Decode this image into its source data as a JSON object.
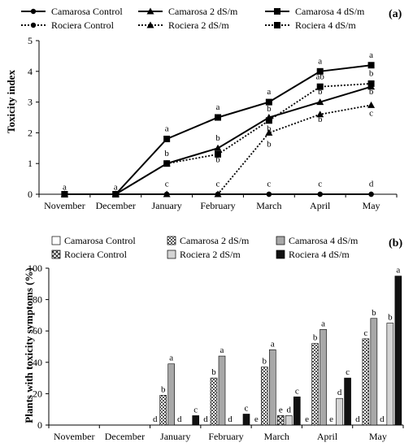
{
  "chart_data": [
    {
      "type": "line",
      "panel_label": "(a)",
      "ylabel": "Toxicity index",
      "categories": [
        "November",
        "December",
        "January",
        "February",
        "March",
        "April",
        "May"
      ],
      "ylim": [
        0,
        5
      ],
      "yticks": [
        "0",
        "1",
        "2",
        "3",
        "4",
        "5"
      ],
      "grid": false,
      "legend_position": "top",
      "series": [
        {
          "name": "Camarosa Control",
          "values": [
            0,
            0,
            0,
            0,
            0,
            0,
            0
          ],
          "marker": "circle",
          "dash": "solid",
          "labels": [
            "",
            "",
            "",
            "",
            "",
            "",
            ""
          ]
        },
        {
          "name": "Camarosa 2 dS/m",
          "values": [
            0,
            0,
            1,
            1.5,
            2.5,
            3,
            3.5
          ],
          "marker": "triangle",
          "dash": "solid",
          "labels": [
            "",
            "",
            "",
            "",
            "",
            "",
            ""
          ]
        },
        {
          "name": "Camarosa 4 dS/m",
          "values": [
            0,
            0,
            1.8,
            2.5,
            3,
            4,
            4.2
          ],
          "marker": "square",
          "dash": "solid",
          "labels": [
            "",
            "",
            "",
            "",
            "",
            "",
            ""
          ]
        },
        {
          "name": "Rociera Control",
          "values": [
            0,
            0,
            0,
            0,
            0,
            0,
            0
          ],
          "marker": "circle",
          "dash": "dotted",
          "labels": [
            "",
            "",
            "",
            "",
            "",
            "",
            ""
          ]
        },
        {
          "name": "Rociera 2 dS/m",
          "values": [
            0,
            0,
            0,
            0,
            2,
            2.6,
            2.9
          ],
          "marker": "triangle",
          "dash": "dotted",
          "labels": [
            "",
            "",
            "",
            "",
            "",
            "",
            ""
          ]
        },
        {
          "name": "Rociera 4 dS/m",
          "values": [
            0,
            0,
            1,
            1.3,
            2.4,
            3.5,
            3.6
          ],
          "marker": "square",
          "dash": "dotted",
          "labels": [
            "",
            "",
            "",
            "",
            "",
            "",
            ""
          ]
        }
      ],
      "annotations": [
        {
          "cat": 0,
          "y": 0.15,
          "text": "a"
        },
        {
          "cat": 1,
          "y": 0.15,
          "text": "a"
        },
        {
          "cat": 2,
          "y": 2.05,
          "text": "a"
        },
        {
          "cat": 2,
          "y": 1.25,
          "text": "b"
        },
        {
          "cat": 2,
          "y": 0.25,
          "text": "c"
        },
        {
          "cat": 3,
          "y": 2.75,
          "text": "a"
        },
        {
          "cat": 3,
          "y": 1.75,
          "text": "b"
        },
        {
          "cat": 3,
          "y": 1.05,
          "text": "b"
        },
        {
          "cat": 3,
          "y": 0.25,
          "text": "c"
        },
        {
          "cat": 4,
          "y": 3.25,
          "text": "a"
        },
        {
          "cat": 4,
          "y": 2.7,
          "text": "b"
        },
        {
          "cat": 4,
          "y": 2.05,
          "text": "b"
        },
        {
          "cat": 4,
          "y": 1.55,
          "text": "b"
        },
        {
          "cat": 4,
          "y": 0.25,
          "text": "c"
        },
        {
          "cat": 5,
          "y": 4.25,
          "text": "a"
        },
        {
          "cat": 5,
          "y": 3.75,
          "text": "ab"
        },
        {
          "cat": 5,
          "y": 3.25,
          "text": "b"
        },
        {
          "cat": 5,
          "y": 2.35,
          "text": "b"
        },
        {
          "cat": 5,
          "y": 0.25,
          "text": "c"
        },
        {
          "cat": 6,
          "y": 4.45,
          "text": "a"
        },
        {
          "cat": 6,
          "y": 3.85,
          "text": "b"
        },
        {
          "cat": 6,
          "y": 3.25,
          "text": "b"
        },
        {
          "cat": 6,
          "y": 2.55,
          "text": "c"
        },
        {
          "cat": 6,
          "y": 0.25,
          "text": "d"
        }
      ]
    },
    {
      "type": "bar",
      "panel_label": "(b)",
      "ylabel": "Plants with toxicity symptoms (%)",
      "categories": [
        "November",
        "December",
        "January",
        "February",
        "March",
        "April",
        "May"
      ],
      "ylim": [
        0,
        100
      ],
      "yticks": [
        "0",
        "20",
        "40",
        "60",
        "80",
        "100"
      ],
      "grid": false,
      "legend_position": "top",
      "series": [
        {
          "name": "Camarosa Control",
          "values": [
            0,
            0,
            0,
            0,
            0,
            0,
            0
          ],
          "pattern": "white",
          "labels": [
            "",
            "",
            "d",
            "d",
            "e",
            "e",
            "d"
          ]
        },
        {
          "name": "Camarosa 2 dS/m",
          "values": [
            0,
            0,
            19,
            30,
            37,
            52,
            55
          ],
          "pattern": "checker",
          "labels": [
            "",
            "",
            "b",
            "b",
            "b",
            "b",
            "c"
          ]
        },
        {
          "name": "Camarosa 4 dS/m",
          "values": [
            0,
            0,
            39,
            44,
            48,
            61,
            68
          ],
          "pattern": "gray",
          "labels": [
            "",
            "",
            "a",
            "a",
            "a",
            "a",
            "b"
          ]
        },
        {
          "name": "Rociera Control",
          "values": [
            0,
            0,
            0,
            0,
            6,
            0,
            0
          ],
          "pattern": "crosshatch",
          "labels": [
            "",
            "",
            "d",
            "d",
            "e",
            "e",
            "d"
          ]
        },
        {
          "name": "Rociera 2 dS/m",
          "values": [
            0,
            0,
            0,
            0,
            6,
            17,
            65
          ],
          "pattern": "light",
          "labels": [
            "",
            "",
            "",
            "",
            "d",
            "d",
            "b"
          ]
        },
        {
          "name": "Rociera 4 dS/m",
          "values": [
            0,
            0,
            6,
            7,
            18,
            30,
            95
          ],
          "pattern": "black",
          "labels": [
            "",
            "",
            "c",
            "c",
            "c",
            "c",
            "a"
          ]
        }
      ]
    }
  ]
}
